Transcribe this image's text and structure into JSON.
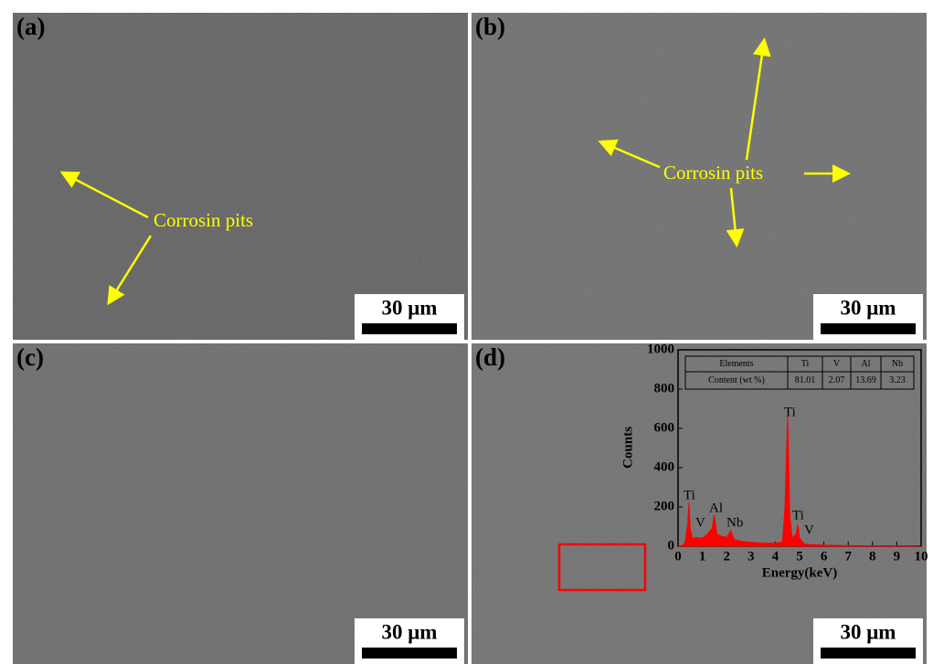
{
  "panels": [
    {
      "label": "(a)",
      "annotation": "Corrosin pits",
      "scale_bar": "30 μm"
    },
    {
      "label": "(b)",
      "annotation": "Corrosin pits",
      "scale_bar": "30 μm"
    },
    {
      "label": "(c)",
      "scale_bar": "30 μm"
    },
    {
      "label": "(d)",
      "scale_bar": "30 μm"
    }
  ],
  "table": {
    "header": [
      "Elements",
      "Ti",
      "V",
      "Al",
      "Nb"
    ],
    "rows": [
      [
        "Content (wt %)",
        81.01,
        2.07,
        13.69,
        3.23
      ]
    ]
  },
  "chart_data": {
    "type": "area",
    "x_label": "Energy(keV)",
    "y_label": "Counts",
    "color": "#ff0000",
    "x": [
      0,
      0.2,
      0.3,
      0.4,
      0.45,
      0.5,
      0.55,
      0.6,
      0.8,
      1.0,
      1.2,
      1.4,
      1.49,
      1.6,
      1.8,
      2.0,
      2.17,
      2.3,
      2.6,
      3.0,
      3.5,
      4.0,
      4.3,
      4.4,
      4.51,
      4.6,
      4.7,
      4.85,
      4.93,
      5.0,
      5.2,
      6,
      7,
      8,
      9,
      10
    ],
    "values": [
      0,
      5,
      20,
      120,
      220,
      90,
      60,
      40,
      45,
      40,
      60,
      90,
      160,
      60,
      50,
      45,
      80,
      35,
      25,
      20,
      15,
      15,
      20,
      200,
      660,
      150,
      40,
      60,
      110,
      40,
      10,
      5,
      3,
      2,
      1,
      0
    ],
    "peak_labels": [
      "Ti",
      "V",
      "Al",
      "Nb",
      "Ti",
      "Ti",
      "V"
    ],
    "xlim": [
      0,
      10
    ],
    "xticks": [
      0,
      1,
      2,
      3,
      4,
      5,
      6,
      7,
      8,
      9,
      10
    ],
    "ylim": [
      0,
      1000
    ],
    "yticks": [
      0,
      200,
      400,
      600,
      800,
      1000
    ]
  }
}
